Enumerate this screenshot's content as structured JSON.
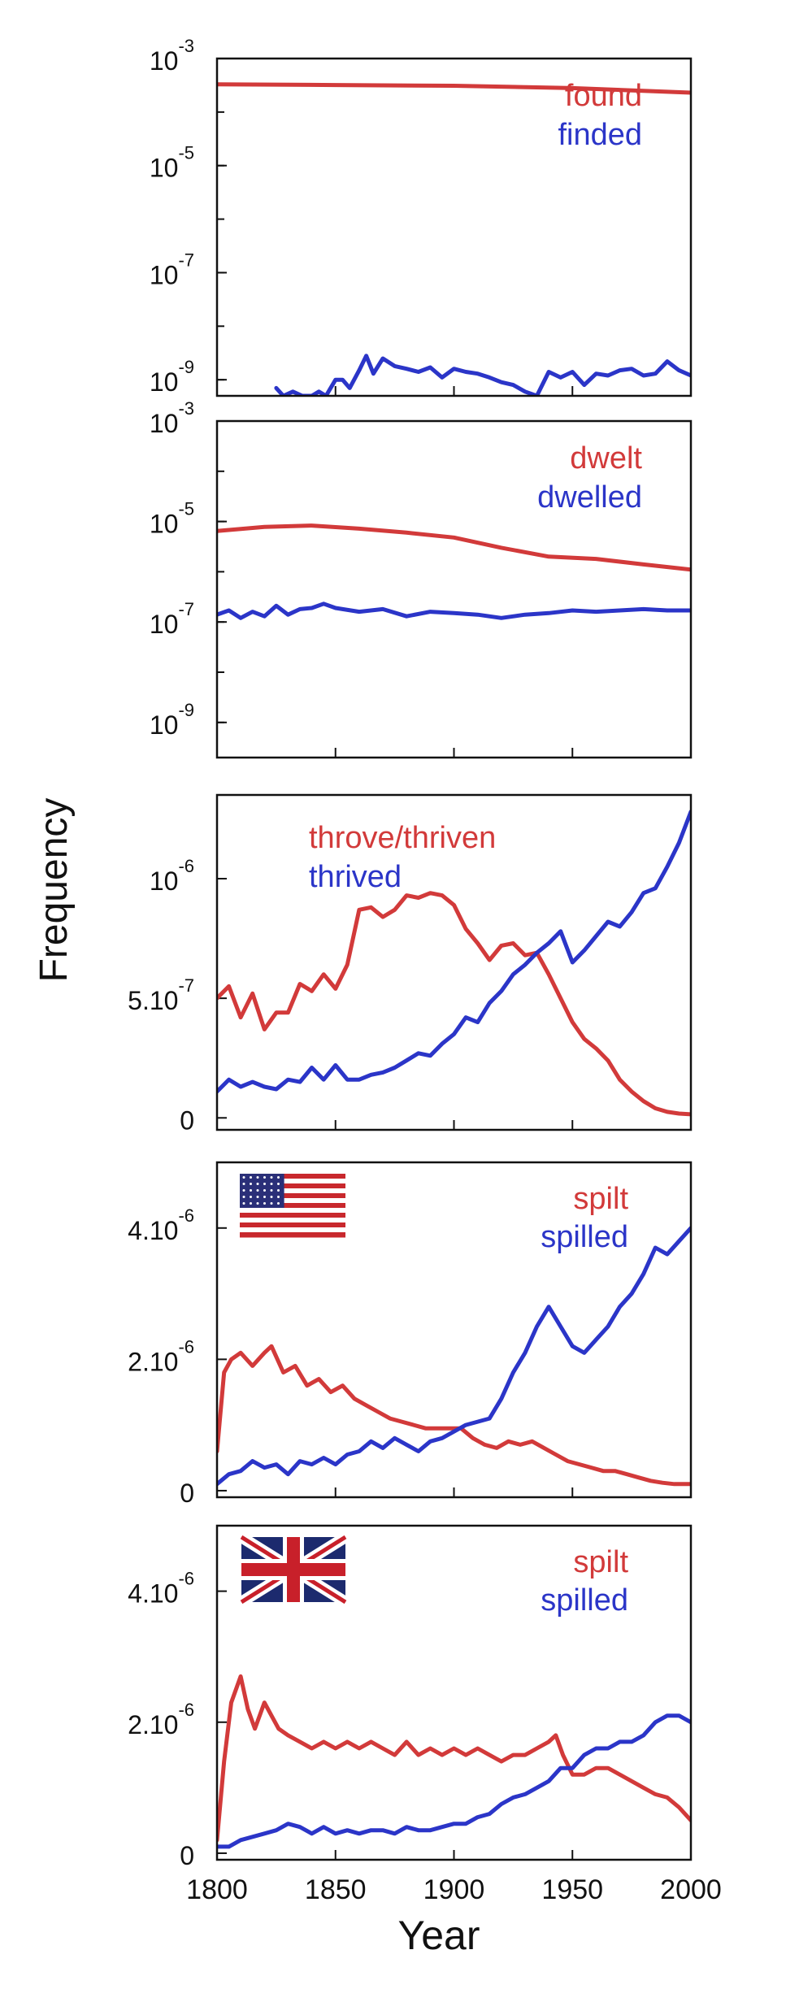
{
  "figure": {
    "ylabel": "Frequency",
    "xlabel": "Year"
  },
  "colors": {
    "red": "#d23a3a",
    "blue": "#2b35c8",
    "frame": "#111111"
  },
  "chart_data": [
    {
      "type": "line",
      "yscale": "log",
      "xlim": [
        1800,
        2000
      ],
      "ylim": [
        5e-10,
        0.001
      ],
      "yticks": [
        {
          "exp": "-3",
          "value": 0.001
        },
        {
          "exp": "-5",
          "value": 1e-05
        },
        {
          "exp": "-7",
          "value": 1e-07
        },
        {
          "exp": "-9",
          "value": 1e-09
        }
      ],
      "series": [
        {
          "name": "found",
          "color": "#d23a3a",
          "x": [
            1800,
            1850,
            1900,
            1950,
            2000
          ],
          "y": [
            0.00033,
            0.00032,
            0.00031,
            0.00028,
            0.00023
          ]
        },
        {
          "name": "finded",
          "color": "#2b35c8",
          "x": [
            1825,
            1828,
            1832,
            1836,
            1840,
            1843,
            1846,
            1850,
            1853,
            1856,
            1860,
            1863,
            1866,
            1870,
            1875,
            1880,
            1885,
            1890,
            1895,
            1900,
            1905,
            1910,
            1915,
            1920,
            1925,
            1930,
            1935,
            1940,
            1945,
            1950,
            1955,
            1960,
            1965,
            1970,
            1975,
            1980,
            1985,
            1990,
            1995,
            2000
          ],
          "y": [
            7e-10,
            5e-10,
            6e-10,
            5e-10,
            5e-10,
            6e-10,
            5e-10,
            1e-09,
            1e-09,
            7e-10,
            1.5e-09,
            2.8e-09,
            1.3e-09,
            2.5e-09,
            1.8e-09,
            1.6e-09,
            1.4e-09,
            1.7e-09,
            1.1e-09,
            1.6e-09,
            1.4e-09,
            1.3e-09,
            1.1e-09,
            9e-10,
            8e-10,
            6e-10,
            5e-10,
            1.4e-09,
            1.1e-09,
            1.4e-09,
            8e-10,
            1.3e-09,
            1.2e-09,
            1.5e-09,
            1.6e-09,
            1.2e-09,
            1.3e-09,
            2.2e-09,
            1.5e-09,
            1.2e-09
          ]
        }
      ],
      "legend": [
        "found",
        "finded"
      ]
    },
    {
      "type": "line",
      "yscale": "log",
      "xlim": [
        1800,
        2000
      ],
      "ylim": [
        2e-10,
        0.001
      ],
      "yticks": [
        {
          "exp": "-3",
          "value": 0.001
        },
        {
          "exp": "-5",
          "value": 1e-05
        },
        {
          "exp": "-7",
          "value": 1e-07
        },
        {
          "exp": "-9",
          "value": 1e-09
        }
      ],
      "series": [
        {
          "name": "dwelt",
          "color": "#d23a3a",
          "x": [
            1800,
            1820,
            1840,
            1860,
            1880,
            1900,
            1920,
            1940,
            1960,
            1980,
            2000
          ],
          "y": [
            6.5e-06,
            7.8e-06,
            8.3e-06,
            7.2e-06,
            6e-06,
            4.8e-06,
            3e-06,
            2e-06,
            1.8e-06,
            1.4e-06,
            1.1e-06
          ]
        },
        {
          "name": "dwelled",
          "color": "#2b35c8",
          "x": [
            1800,
            1805,
            1810,
            1815,
            1820,
            1825,
            1830,
            1835,
            1840,
            1845,
            1850,
            1860,
            1870,
            1880,
            1890,
            1900,
            1910,
            1920,
            1930,
            1940,
            1950,
            1960,
            1970,
            1980,
            1990,
            2000
          ],
          "y": [
            1.4e-07,
            1.7e-07,
            1.2e-07,
            1.6e-07,
            1.3e-07,
            2.1e-07,
            1.4e-07,
            1.8e-07,
            1.9e-07,
            2.3e-07,
            1.9e-07,
            1.6e-07,
            1.8e-07,
            1.3e-07,
            1.6e-07,
            1.5e-07,
            1.4e-07,
            1.2e-07,
            1.4e-07,
            1.5e-07,
            1.7e-07,
            1.6e-07,
            1.7e-07,
            1.8e-07,
            1.7e-07,
            1.7e-07
          ]
        }
      ],
      "legend": [
        "dwelt",
        "dwelled"
      ]
    },
    {
      "type": "line",
      "yscale": "linear",
      "xlim": [
        1800,
        2000
      ],
      "ylim": [
        -5e-08,
        1.35e-06
      ],
      "yticks": [
        {
          "pre": "",
          "exp": "-6",
          "value": 1e-06
        },
        {
          "pre": "5.",
          "exp": "-7",
          "value": 5e-07
        },
        {
          "pre": "0",
          "exp": "",
          "value": 0
        }
      ],
      "series": [
        {
          "name": "throve/thriven",
          "color": "#d23a3a",
          "x": [
            1800,
            1805,
            1810,
            1815,
            1820,
            1825,
            1830,
            1835,
            1840,
            1845,
            1850,
            1855,
            1860,
            1865,
            1870,
            1875,
            1880,
            1885,
            1890,
            1895,
            1900,
            1905,
            1910,
            1915,
            1920,
            1925,
            1930,
            1935,
            1940,
            1945,
            1950,
            1955,
            1960,
            1965,
            1970,
            1975,
            1980,
            1985,
            1990,
            1995,
            2000
          ],
          "y": [
            5e-07,
            5.5e-07,
            4.2e-07,
            5.2e-07,
            3.7e-07,
            4.4e-07,
            4.4e-07,
            5.6e-07,
            5.3e-07,
            6e-07,
            5.4e-07,
            6.4e-07,
            8.7e-07,
            8.8e-07,
            8.4e-07,
            8.7e-07,
            9.3e-07,
            9.2e-07,
            9.4e-07,
            9.3e-07,
            8.9e-07,
            7.9e-07,
            7.3e-07,
            6.6e-07,
            7.2e-07,
            7.3e-07,
            6.8e-07,
            6.9e-07,
            6e-07,
            5e-07,
            4e-07,
            3.3e-07,
            2.9e-07,
            2.4e-07,
            1.6e-07,
            1.1e-07,
            7e-08,
            4e-08,
            2.5e-08,
            1.8e-08,
            1.5e-08
          ]
        },
        {
          "name": "thrived",
          "color": "#2b35c8",
          "x": [
            1800,
            1805,
            1810,
            1815,
            1820,
            1825,
            1830,
            1835,
            1840,
            1845,
            1850,
            1855,
            1860,
            1865,
            1870,
            1875,
            1880,
            1885,
            1890,
            1895,
            1900,
            1905,
            1910,
            1915,
            1920,
            1925,
            1930,
            1935,
            1940,
            1945,
            1950,
            1955,
            1960,
            1965,
            1970,
            1975,
            1980,
            1985,
            1990,
            1995,
            2000
          ],
          "y": [
            1.1e-07,
            1.6e-07,
            1.3e-07,
            1.5e-07,
            1.3e-07,
            1.2e-07,
            1.6e-07,
            1.5e-07,
            2.1e-07,
            1.6e-07,
            2.2e-07,
            1.6e-07,
            1.6e-07,
            1.8e-07,
            1.9e-07,
            2.1e-07,
            2.4e-07,
            2.7e-07,
            2.6e-07,
            3.1e-07,
            3.5e-07,
            4.2e-07,
            4e-07,
            4.8e-07,
            5.3e-07,
            6e-07,
            6.4e-07,
            6.9e-07,
            7.3e-07,
            7.8e-07,
            6.5e-07,
            7e-07,
            7.6e-07,
            8.2e-07,
            8e-07,
            8.6e-07,
            9.4e-07,
            9.6e-07,
            1.05e-06,
            1.15e-06,
            1.28e-06
          ]
        }
      ],
      "legend": [
        "throve/thriven",
        "thrived"
      ]
    },
    {
      "type": "line",
      "yscale": "linear",
      "xlim": [
        1800,
        2000
      ],
      "ylim": [
        -1e-07,
        5e-06
      ],
      "yticks": [
        {
          "pre": "4.",
          "exp": "-6",
          "value": 4e-06
        },
        {
          "pre": "2.",
          "exp": "-6",
          "value": 2e-06
        },
        {
          "pre": "0",
          "exp": "",
          "value": 0
        }
      ],
      "flag": "us",
      "series": [
        {
          "name": "spilt",
          "color": "#d23a3a",
          "x": [
            1800,
            1803,
            1806,
            1810,
            1815,
            1820,
            1823,
            1828,
            1833,
            1838,
            1843,
            1848,
            1853,
            1858,
            1863,
            1868,
            1873,
            1878,
            1883,
            1888,
            1893,
            1898,
            1903,
            1908,
            1913,
            1918,
            1923,
            1928,
            1933,
            1938,
            1943,
            1948,
            1953,
            1958,
            1963,
            1968,
            1973,
            1978,
            1983,
            1988,
            1993,
            2000
          ],
          "y": [
            6e-07,
            1.8e-06,
            2e-06,
            2.1e-06,
            1.9e-06,
            2.1e-06,
            2.2e-06,
            1.8e-06,
            1.9e-06,
            1.6e-06,
            1.7e-06,
            1.5e-06,
            1.6e-06,
            1.4e-06,
            1.3e-06,
            1.2e-06,
            1.1e-06,
            1.05e-06,
            1e-06,
            9.5e-07,
            9.5e-07,
            9.5e-07,
            9.5e-07,
            8e-07,
            7e-07,
            6.5e-07,
            7.5e-07,
            7e-07,
            7.5e-07,
            6.5e-07,
            5.5e-07,
            4.5e-07,
            4e-07,
            3.5e-07,
            3e-07,
            3e-07,
            2.5e-07,
            2e-07,
            1.5e-07,
            1.2e-07,
            1e-07,
            1e-07
          ]
        },
        {
          "name": "spilled",
          "color": "#2b35c8",
          "x": [
            1800,
            1805,
            1810,
            1815,
            1820,
            1825,
            1830,
            1835,
            1840,
            1845,
            1850,
            1855,
            1860,
            1865,
            1870,
            1875,
            1880,
            1885,
            1890,
            1895,
            1900,
            1905,
            1910,
            1915,
            1920,
            1925,
            1930,
            1935,
            1940,
            1945,
            1950,
            1955,
            1960,
            1965,
            1970,
            1975,
            1980,
            1985,
            1990,
            1995,
            2000
          ],
          "y": [
            1e-07,
            2.5e-07,
            3e-07,
            4.5e-07,
            3.5e-07,
            4e-07,
            2.5e-07,
            4.5e-07,
            4e-07,
            5e-07,
            4e-07,
            5.5e-07,
            6e-07,
            7.5e-07,
            6.5e-07,
            8e-07,
            7e-07,
            6e-07,
            7.5e-07,
            8e-07,
            9e-07,
            1e-06,
            1.05e-06,
            1.1e-06,
            1.4e-06,
            1.8e-06,
            2.1e-06,
            2.5e-06,
            2.8e-06,
            2.5e-06,
            2.2e-06,
            2.1e-06,
            2.3e-06,
            2.5e-06,
            2.8e-06,
            3e-06,
            3.3e-06,
            3.7e-06,
            3.6e-06,
            3.8e-06,
            4e-06
          ]
        }
      ],
      "legend": [
        "spilt",
        "spilled"
      ]
    },
    {
      "type": "line",
      "yscale": "linear",
      "xlim": [
        1800,
        2000
      ],
      "ylim": [
        -1e-07,
        5e-06
      ],
      "yticks": [
        {
          "pre": "4.",
          "exp": "-6",
          "value": 4e-06
        },
        {
          "pre": "2.",
          "exp": "-6",
          "value": 2e-06
        },
        {
          "pre": "0",
          "exp": "",
          "value": 0
        }
      ],
      "xticks": [
        1800,
        1850,
        1900,
        1950,
        2000
      ],
      "flag": "uk",
      "series": [
        {
          "name": "spilt",
          "color": "#d23a3a",
          "x": [
            1800,
            1803,
            1806,
            1810,
            1813,
            1816,
            1820,
            1823,
            1826,
            1830,
            1835,
            1840,
            1845,
            1850,
            1855,
            1860,
            1865,
            1870,
            1875,
            1880,
            1885,
            1890,
            1895,
            1900,
            1905,
            1910,
            1915,
            1920,
            1925,
            1930,
            1935,
            1940,
            1943,
            1946,
            1950,
            1955,
            1960,
            1965,
            1970,
            1975,
            1980,
            1985,
            1990,
            1995,
            2000
          ],
          "y": [
            2e-07,
            1.4e-06,
            2.3e-06,
            2.7e-06,
            2.2e-06,
            1.9e-06,
            2.3e-06,
            2.1e-06,
            1.9e-06,
            1.8e-06,
            1.7e-06,
            1.6e-06,
            1.7e-06,
            1.6e-06,
            1.7e-06,
            1.6e-06,
            1.7e-06,
            1.6e-06,
            1.5e-06,
            1.7e-06,
            1.5e-06,
            1.6e-06,
            1.5e-06,
            1.6e-06,
            1.5e-06,
            1.6e-06,
            1.5e-06,
            1.4e-06,
            1.5e-06,
            1.5e-06,
            1.6e-06,
            1.7e-06,
            1.8e-06,
            1.5e-06,
            1.2e-06,
            1.2e-06,
            1.3e-06,
            1.3e-06,
            1.2e-06,
            1.1e-06,
            1e-06,
            9e-07,
            8.5e-07,
            7e-07,
            5e-07
          ]
        },
        {
          "name": "spilled",
          "color": "#2b35c8",
          "x": [
            1800,
            1805,
            1810,
            1815,
            1820,
            1825,
            1830,
            1835,
            1840,
            1845,
            1850,
            1855,
            1860,
            1865,
            1870,
            1875,
            1880,
            1885,
            1890,
            1895,
            1900,
            1905,
            1910,
            1915,
            1920,
            1925,
            1930,
            1935,
            1940,
            1945,
            1950,
            1955,
            1960,
            1965,
            1970,
            1975,
            1980,
            1985,
            1990,
            1995,
            2000
          ],
          "y": [
            1e-07,
            1e-07,
            2e-07,
            2.5e-07,
            3e-07,
            3.5e-07,
            4.5e-07,
            4e-07,
            3e-07,
            4e-07,
            3e-07,
            3.5e-07,
            3e-07,
            3.5e-07,
            3.5e-07,
            3e-07,
            4e-07,
            3.5e-07,
            3.5e-07,
            4e-07,
            4.5e-07,
            4.5e-07,
            5.5e-07,
            6e-07,
            7.5e-07,
            8.5e-07,
            9e-07,
            1e-06,
            1.1e-06,
            1.3e-06,
            1.3e-06,
            1.5e-06,
            1.6e-06,
            1.6e-06,
            1.7e-06,
            1.7e-06,
            1.8e-06,
            2e-06,
            2.1e-06,
            2.1e-06,
            2e-06
          ]
        }
      ],
      "legend": [
        "spilt",
        "spilled"
      ]
    }
  ]
}
